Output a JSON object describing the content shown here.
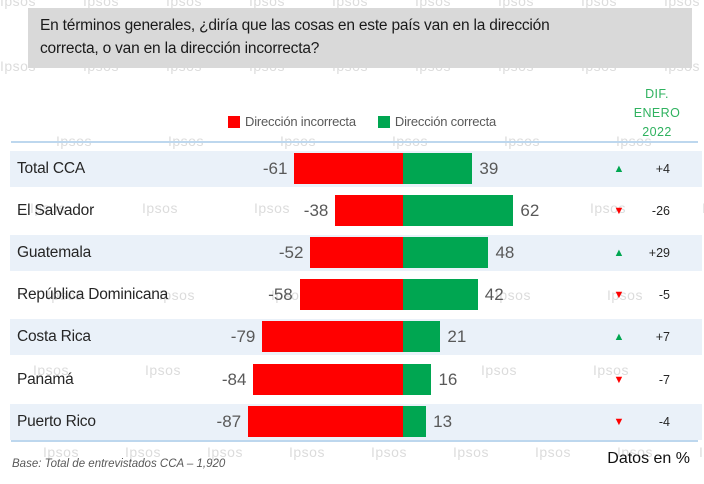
{
  "title": {
    "lines": [
      "En términos generales, ¿diría que las cosas en este país van en la dirección",
      "correcta, o van en la dirección incorrecta?"
    ]
  },
  "legend": {
    "incorrect": "Dirección incorrecta",
    "correct": "Dirección correcta"
  },
  "diff_header": {
    "line1": "DIF.",
    "line2": "ENERO",
    "line3": "2022"
  },
  "watermark": {
    "text": "Ipsos"
  },
  "footer": {
    "base_note": "Base: Total de entrevistados CCA – 1,920",
    "units_note": "Datos en %"
  },
  "colors": {
    "red": "#ff0000",
    "green": "#00a651",
    "row_band": "#eaf1f9",
    "rule_blue": "#bdd7ee",
    "title_bg": "#d9d9d9",
    "watermark_gray": "#dcdcdc",
    "diff_header_green": "#2fb25f",
    "value_text": "#595959"
  },
  "chart_data": {
    "type": "bar",
    "orientation": "horizontal",
    "variant": "diverging-stacked",
    "title": "En términos generales, ¿diría que las cosas en este país van en la dirección correcta, o van en la dirección incorrecta?",
    "units": "%",
    "categories": [
      "Total CCA",
      "El Salvador",
      "Guatemala",
      "República Dominicana",
      "Costa Rica",
      "Panamá",
      "Puerto Rico"
    ],
    "series": [
      {
        "name": "Dirección incorrecta",
        "color": "#ff0000",
        "values": [
          -61,
          -38,
          -52,
          -58,
          -79,
          -84,
          -87
        ]
      },
      {
        "name": "Dirección correcta",
        "color": "#00a651",
        "values": [
          39,
          62,
          48,
          42,
          21,
          16,
          13
        ]
      }
    ],
    "diff_column": {
      "header": "DIF. ENERO 2022",
      "values": [
        {
          "direction": "up",
          "label": "+4"
        },
        {
          "direction": "down",
          "label": "-26"
        },
        {
          "direction": "up",
          "label": "+29"
        },
        {
          "direction": "down",
          "label": "-5"
        },
        {
          "direction": "up",
          "label": "+7"
        },
        {
          "direction": "down",
          "label": "-7"
        },
        {
          "direction": "down",
          "label": "-4"
        }
      ]
    },
    "base_note": "Base: Total de entrevistados CCA – 1,920",
    "legend_position": "top"
  }
}
